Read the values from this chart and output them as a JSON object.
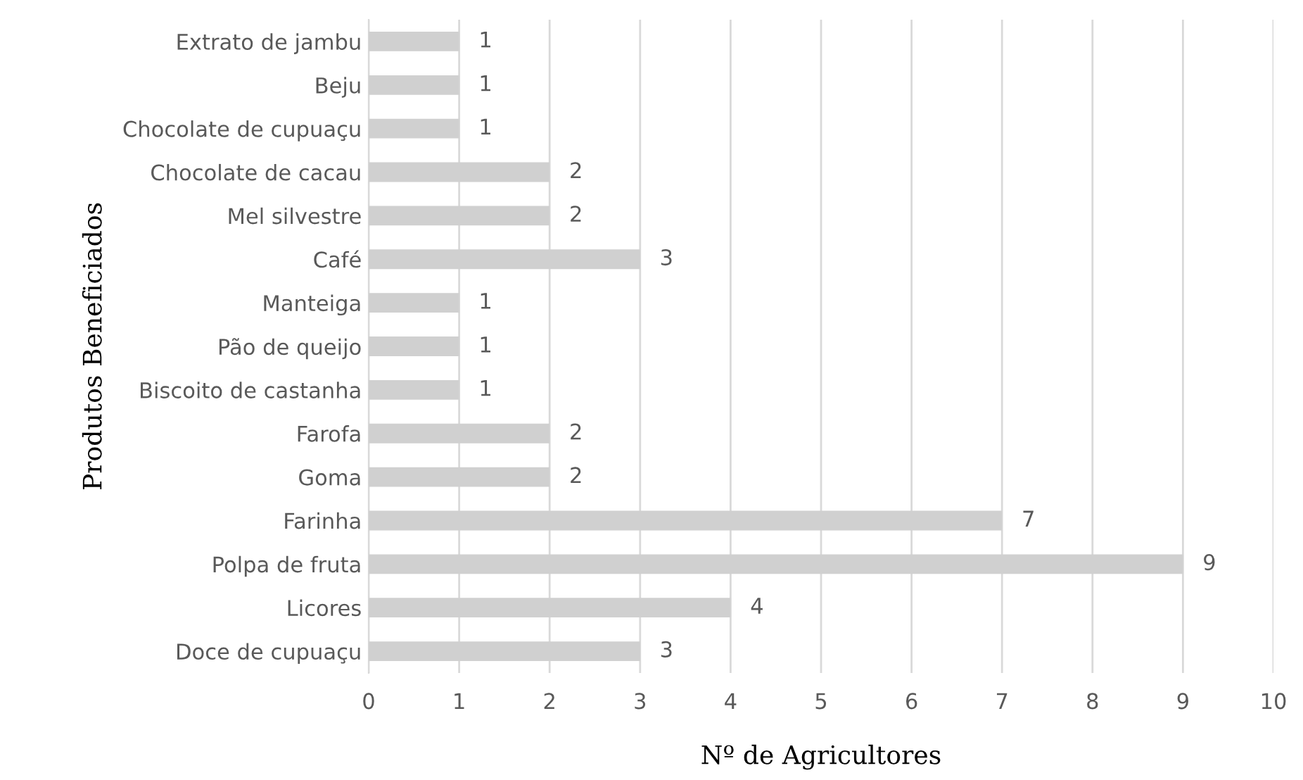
{
  "chart_data": {
    "type": "bar",
    "orientation": "horizontal",
    "xlabel": "Nº de Agricultores",
    "ylabel": "Produtos Beneficiados",
    "categories": [
      "Extrato de jambu",
      "Beju",
      "Chocolate de cupuaçu",
      "Chocolate de cacau",
      "Mel silvestre",
      "Café",
      "Manteiga",
      "Pão de queijo",
      "Biscoito de castanha",
      "Farofa",
      "Goma",
      "Farinha",
      "Polpa de fruta",
      "Licores",
      "Doce de cupuaçu"
    ],
    "values": [
      1,
      1,
      1,
      2,
      2,
      3,
      1,
      1,
      1,
      2,
      2,
      7,
      9,
      4,
      3
    ],
    "color": "#d0d0d0",
    "xlim": [
      0,
      10
    ],
    "xticks": [
      0,
      1,
      2,
      3,
      4,
      5,
      6,
      7,
      8,
      9,
      10
    ],
    "grid": "x",
    "data_labels": true
  }
}
